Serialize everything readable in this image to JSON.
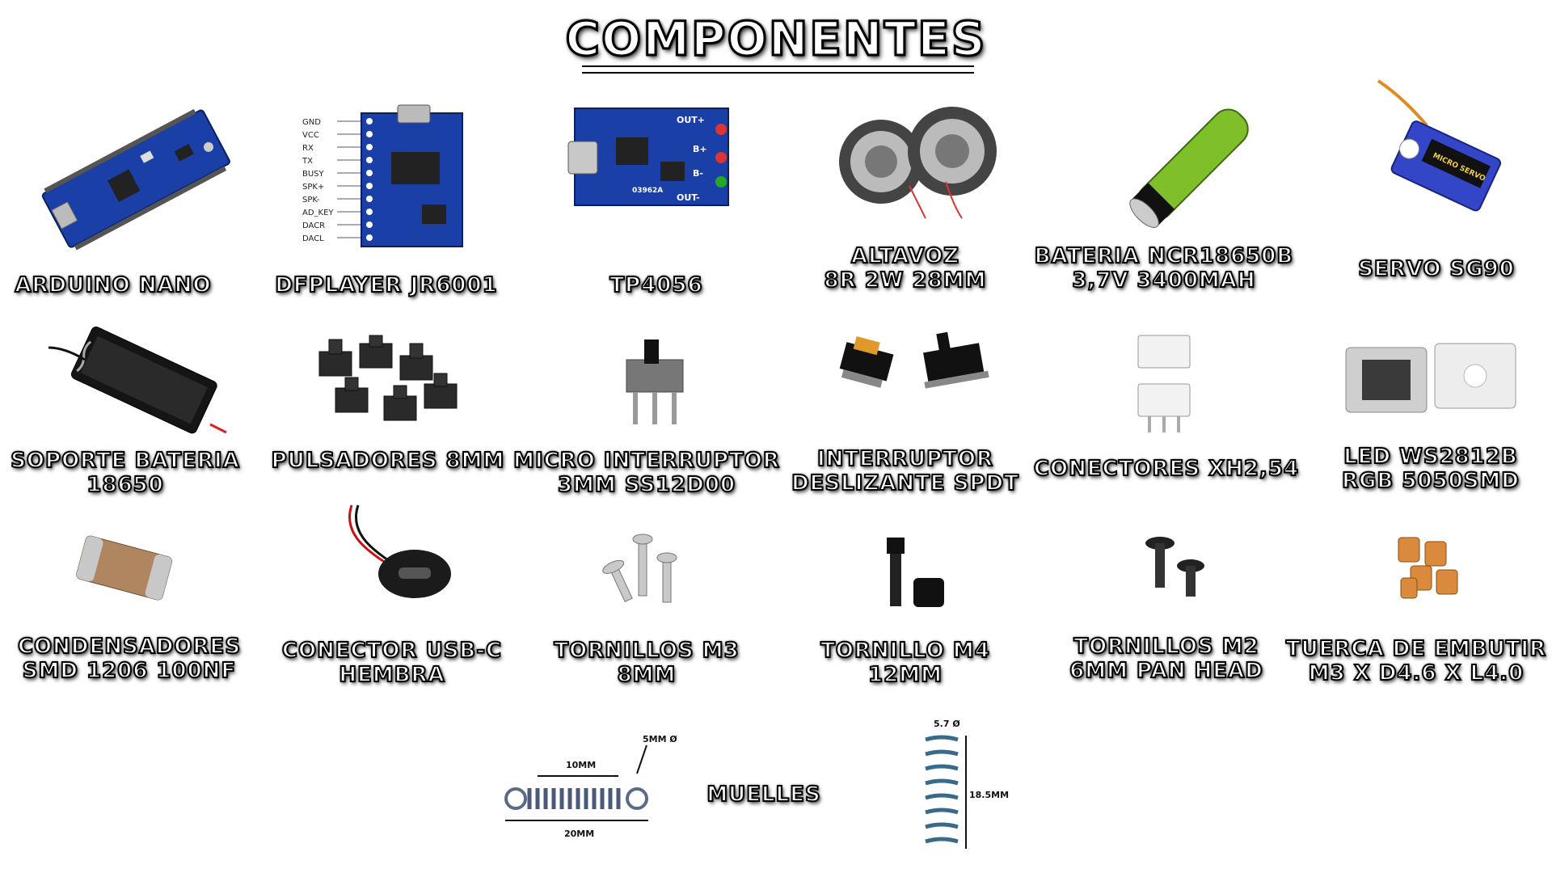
{
  "title": "COMPONENTES",
  "components": [
    {
      "line1": "ARDUINO NANO",
      "line2": ""
    },
    {
      "line1": "DFPLAYER JR6001",
      "line2": ""
    },
    {
      "line1": "TP4056",
      "line2": ""
    },
    {
      "line1": "ALTAVOZ",
      "line2": "8R 2W 28MM"
    },
    {
      "line1": "BATERIA NCR18650B",
      "line2": "3,7V 3400MAH"
    },
    {
      "line1": "SERVO SG90",
      "line2": ""
    },
    {
      "line1": "SOPORTE BATERIA",
      "line2": "18650"
    },
    {
      "line1": "PULSADORES 8MM",
      "line2": ""
    },
    {
      "line1": "MICRO INTERRUPTOR",
      "line2": "3MM SS12D00"
    },
    {
      "line1": "INTERRUPTOR",
      "line2": "DESLIZANTE SPDT"
    },
    {
      "line1": "CONECTORES XH2,54",
      "line2": ""
    },
    {
      "line1": "LED WS2812B",
      "line2": "RGB 5050SMD"
    },
    {
      "line1": "CONDENSADORES",
      "line2": "SMD 1206 100NF"
    },
    {
      "line1": "CONECTOR USB-C",
      "line2": "HEMBRA"
    },
    {
      "line1": "TORNILLOS M3",
      "line2": "8MM"
    },
    {
      "line1": "TORNILLO M4",
      "line2": "12MM"
    },
    {
      "line1": "TORNILLOS M2",
      "line2": "6MM PAN HEAD"
    },
    {
      "line1": "TUERCA DE EMBUTIR",
      "line2": "M3 X D4.6 X L4.0"
    }
  ],
  "muelles": {
    "label": "MUELLES",
    "dim_diameter_1": "5MM Ø",
    "dim_body": "10MM",
    "dim_total": "20MM",
    "dim_diameter_2": "5.7 Ø",
    "dim_height": "18.5MM"
  },
  "dfplayer_pins": [
    "GND",
    "VCC",
    "RX",
    "TX",
    "BUSY",
    "SPK+",
    "SPK-",
    "AD_KEY",
    "DACR",
    "DACL"
  ],
  "tp4056_labels": {
    "out_plus": "OUT+",
    "out_minus": "OUT-",
    "b_plus": "B+",
    "b_minus": "B-",
    "chip": "03962A"
  },
  "servo_label": "MICRO SERVO",
  "colors": {
    "pcb_blue": "#1a3fa6",
    "pcb_dark": "#0d2a7a",
    "battery_green": "#7fbf2a",
    "copper": "#d98a3c",
    "servo_blue": "#3346c8"
  }
}
